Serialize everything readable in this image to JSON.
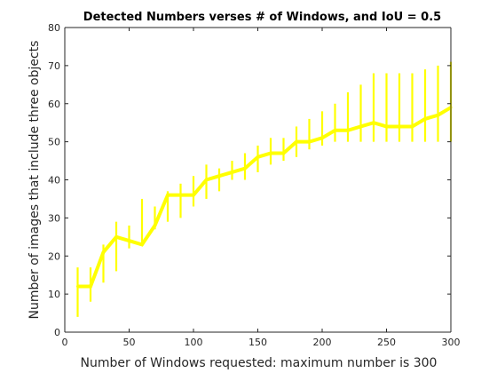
{
  "chart_data": {
    "type": "line",
    "title": "Detected Numbers verses # of Windows, and IoU = 0.5",
    "xlabel": "Number of Windows requested: maximum number is 300",
    "ylabel": "Number of images that include three objects",
    "xlim": [
      0,
      300
    ],
    "ylim": [
      0,
      80
    ],
    "xticks": [
      0,
      50,
      100,
      150,
      200,
      250,
      300
    ],
    "yticks": [
      0,
      10,
      20,
      30,
      40,
      50,
      60,
      70,
      80
    ],
    "grid": false,
    "legend": "none",
    "series": [
      {
        "color": "#ffff00",
        "x": [
          10,
          20,
          30,
          40,
          50,
          60,
          70,
          80,
          90,
          100,
          110,
          120,
          130,
          140,
          150,
          160,
          170,
          180,
          190,
          200,
          210,
          220,
          230,
          240,
          250,
          260,
          270,
          280,
          290,
          300
        ],
        "y": [
          12,
          12,
          21,
          25,
          24,
          23,
          28,
          36,
          36,
          36,
          40,
          41,
          42,
          43,
          46,
          47,
          47,
          50,
          50,
          51,
          53,
          53,
          54,
          55,
          54,
          54,
          54,
          56,
          57,
          59
        ],
        "error_low": [
          4,
          8,
          13,
          16,
          22,
          23,
          27,
          29,
          30,
          33,
          35,
          37,
          40,
          40,
          42,
          44,
          45,
          46,
          48,
          49,
          50,
          50,
          50,
          50,
          50,
          50,
          50,
          50,
          50,
          50
        ],
        "error_high": [
          17,
          17,
          23,
          29,
          28,
          35,
          33,
          37,
          39,
          41,
          44,
          43,
          45,
          47,
          49,
          51,
          51,
          54,
          56,
          58,
          60,
          63,
          65,
          68,
          68,
          68,
          68,
          69,
          70,
          71
        ]
      }
    ]
  }
}
